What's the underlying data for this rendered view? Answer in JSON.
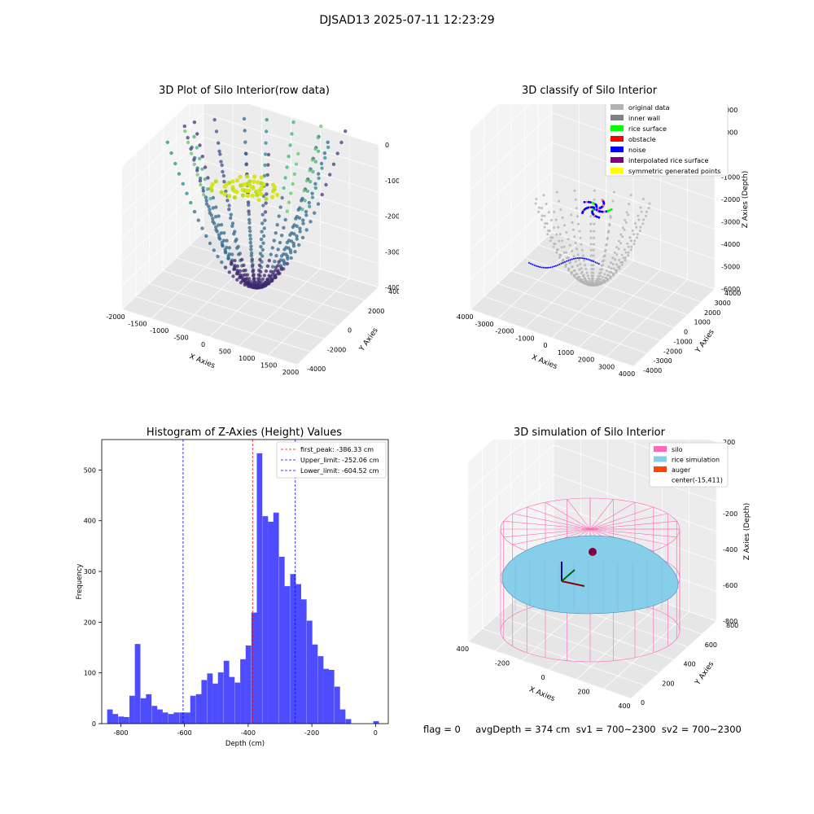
{
  "figure": {
    "title": "DJSAD13 2025-07-11 12:23:29"
  },
  "panels": {
    "raw": {
      "title": "3D Plot of Silo Interior(row data)",
      "xlabel": "X Axies",
      "ylabel": "Y Axies",
      "zlabel": "Z Axies (Depth)",
      "xticks": [
        "-2000",
        "-1500",
        "-1000",
        "-500",
        "0",
        "500",
        "1000",
        "1500",
        "2000"
      ],
      "yticks": [
        "-4000",
        "-2000",
        "0",
        "2000",
        "4000"
      ],
      "zticks": [
        "0",
        "-1000",
        "-2000",
        "-3000",
        "-4000"
      ]
    },
    "classify": {
      "title": "3D classify of Silo Interior",
      "xlabel": "X Axies",
      "ylabel": "Y Axies",
      "zlabel": "Z Axies (Depth)",
      "xticks": [
        "-4000",
        "-3000",
        "-2000",
        "-1000",
        "0",
        "1000",
        "2000",
        "3000",
        "4000"
      ],
      "yticks": [
        "-4000",
        "-3000",
        "-2000",
        "-1000",
        "0",
        "1000",
        "2000",
        "3000",
        "4000"
      ],
      "zticks": [
        "2000",
        "1000",
        "0",
        "-1000",
        "-2000",
        "-3000",
        "-4000",
        "-5000",
        "-6000"
      ],
      "legend": [
        {
          "label": "original data",
          "color": "#b3b3b3"
        },
        {
          "label": "inner wall",
          "color": "#808080"
        },
        {
          "label": "rice surface",
          "color": "#00ff00"
        },
        {
          "label": "obstacle",
          "color": "#ff0000"
        },
        {
          "label": "noise",
          "color": "#0000ff"
        },
        {
          "label": "interpolated rice surface",
          "color": "#800080"
        },
        {
          "label": "symmetric generated points",
          "color": "#ffff00"
        }
      ]
    },
    "simulation": {
      "title": "3D simulation of Silo Interior",
      "xlabel": "X Axies",
      "ylabel": "Y Axies",
      "zlabel": "Z Axies (Depth)",
      "xticks": [
        "-400",
        "-200",
        "0",
        "200",
        "400"
      ],
      "yticks": [
        "0",
        "200",
        "400",
        "600",
        "800"
      ],
      "zticks": [
        "200",
        "0",
        "-200",
        "-400",
        "-600",
        "-800"
      ],
      "legend": [
        {
          "label": "silo",
          "color": "#ff69b4"
        },
        {
          "label": "rice simulation",
          "color": "#87ceeb"
        },
        {
          "label": "auger",
          "color": "#ff4500"
        },
        {
          "label": "center(-15,411)",
          "color": ""
        }
      ],
      "status": "flag = 0     avgDepth = 374 cm  sv1 = 700~2300  sv2 = 700~2300"
    }
  },
  "chart_data": [
    {
      "type": "bar",
      "title": "Histogram of Z-Axies (Height) Values",
      "xlabel": "Depth (cm)",
      "ylabel": "Frequency",
      "xlim": [
        -860,
        40
      ],
      "ylim": [
        0,
        560
      ],
      "xticks": [
        -800,
        -600,
        -400,
        -200,
        0
      ],
      "yticks": [
        0,
        100,
        200,
        300,
        400,
        500
      ],
      "bar_color": "#4d4dff",
      "bin_width": 17.4,
      "bins": [
        [
          -843,
          28
        ],
        [
          -826,
          19
        ],
        [
          -808,
          14
        ],
        [
          -791,
          13
        ],
        [
          -773,
          55
        ],
        [
          -756,
          157
        ],
        [
          -738,
          50
        ],
        [
          -721,
          58
        ],
        [
          -703,
          35
        ],
        [
          -686,
          28
        ],
        [
          -669,
          22
        ],
        [
          -651,
          19
        ],
        [
          -634,
          22
        ],
        [
          -616,
          22
        ],
        [
          -599,
          22
        ],
        [
          -582,
          55
        ],
        [
          -564,
          58
        ],
        [
          -547,
          86
        ],
        [
          -529,
          99
        ],
        [
          -512,
          79
        ],
        [
          -495,
          101
        ],
        [
          -477,
          124
        ],
        [
          -460,
          92
        ],
        [
          -442,
          81
        ],
        [
          -425,
          127
        ],
        [
          -408,
          154
        ],
        [
          -390,
          219
        ],
        [
          -373,
          533
        ],
        [
          -355,
          409
        ],
        [
          -338,
          398
        ],
        [
          -321,
          416
        ],
        [
          -303,
          329
        ],
        [
          -286,
          271
        ],
        [
          -268,
          295
        ],
        [
          -251,
          275
        ],
        [
          -234,
          245
        ],
        [
          -216,
          203
        ],
        [
          -199,
          156
        ],
        [
          -181,
          133
        ],
        [
          -164,
          108
        ],
        [
          -147,
          106
        ],
        [
          -129,
          73
        ],
        [
          -112,
          28
        ],
        [
          -94,
          9
        ],
        [
          -77,
          0
        ],
        [
          -60,
          0
        ],
        [
          -42,
          0
        ],
        [
          -25,
          0
        ],
        [
          -7,
          5
        ]
      ],
      "vlines": [
        {
          "label": "first_peak: -386.33 cm",
          "x": -386.33,
          "color": "#ff0000"
        },
        {
          "label": "Upper_limit: -252.06 cm",
          "x": -252.06,
          "color": "#0000ff"
        },
        {
          "label": "Lower_limit: -604.52 cm",
          "x": -604.52,
          "color": "#0000ff"
        }
      ],
      "legend_position": "upper right"
    }
  ]
}
